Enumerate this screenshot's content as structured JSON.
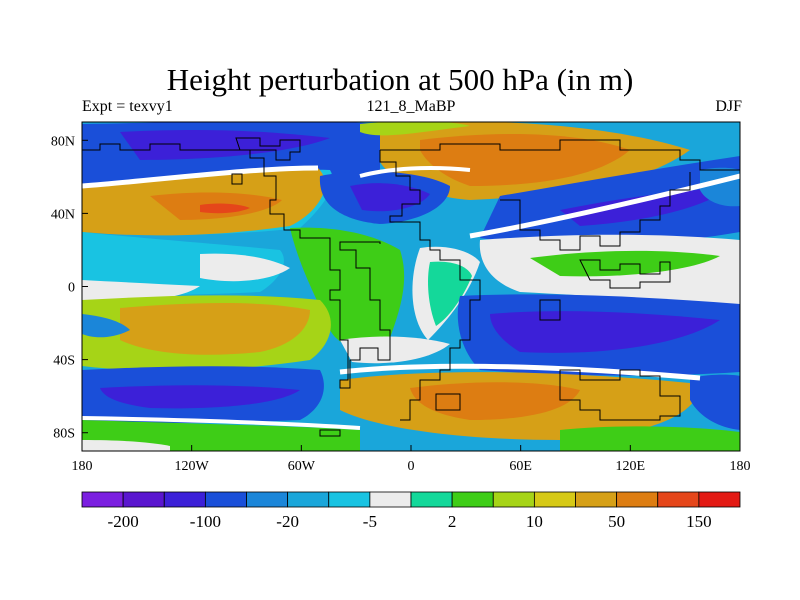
{
  "map": {
    "title": "Height perturbation at 500 hPa (in m)",
    "left_label": "Expt = texvy1",
    "center_label": "121_8_MaBP",
    "right_label": "DJF",
    "projection": "cylindrical equidistant",
    "lon_range": [
      -180,
      180
    ],
    "lat_range": [
      -90,
      90
    ],
    "x_ticks": [
      {
        "value": -180,
        "label": "180"
      },
      {
        "value": -120,
        "label": "120W"
      },
      {
        "value": -60,
        "label": "60W"
      },
      {
        "value": 0,
        "label": "0"
      },
      {
        "value": 60,
        "label": "60E"
      },
      {
        "value": 120,
        "label": "120E"
      },
      {
        "value": 180,
        "label": "180"
      }
    ],
    "y_ticks": [
      {
        "value": 80,
        "label": "80N"
      },
      {
        "value": 40,
        "label": "40N"
      },
      {
        "value": 0,
        "label": "0"
      },
      {
        "value": -40,
        "label": "40S"
      },
      {
        "value": -80,
        "label": "80S"
      }
    ]
  },
  "colorbar": {
    "colors": [
      "#7b1fe0",
      "#5a16cf",
      "#3c20d8",
      "#1a4fd9",
      "#1b86d9",
      "#1aa6da",
      "#19c3e2",
      "#ececec",
      "#14d89a",
      "#3ecd17",
      "#a6d417",
      "#d6c916",
      "#d6a017",
      "#dd7d12",
      "#e5461a",
      "#e31a14"
    ],
    "labels": [
      "-200",
      "-100",
      "-20",
      "-5",
      "2",
      "10",
      "50",
      "150"
    ]
  },
  "colors": {
    "frame": "#000000",
    "background": "#ffffff"
  }
}
